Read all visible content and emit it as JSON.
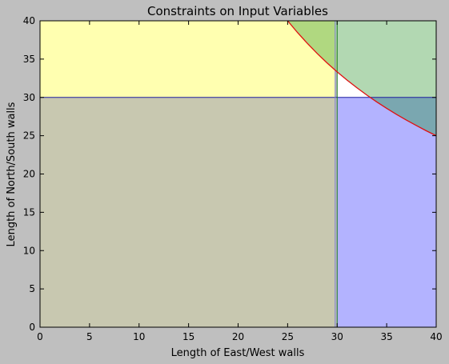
{
  "chart_data": {
    "type": "area",
    "title": "Constraints on Input Variables",
    "xlabel": "Length of East/West walls",
    "ylabel": "Length of North/South walls",
    "xlim": [
      0,
      40
    ],
    "ylim": [
      0,
      40
    ],
    "xticks": [
      0,
      5,
      10,
      15,
      20,
      25,
      30,
      35,
      40
    ],
    "yticks": [
      0,
      5,
      10,
      15,
      20,
      25,
      30,
      35,
      40
    ],
    "grid": false,
    "regions": [
      {
        "fill": "#ffffb0",
        "x": [
          0,
          29.8
        ],
        "y": [
          0,
          40
        ]
      },
      {
        "fill": "#b3b3ff",
        "x": [
          30,
          40
        ],
        "y": [
          0,
          40
        ]
      },
      {
        "fill": "#b2d8b2",
        "x": [
          30,
          40
        ],
        "y": [
          30,
          40
        ]
      },
      {
        "fill": "#c8c8b0",
        "x": [
          0,
          29.8
        ],
        "y": [
          0,
          30
        ]
      }
    ],
    "curve": {
      "color": "#e01010",
      "formula": "y = 1000 / x",
      "x": [
        25,
        26,
        27,
        28,
        29,
        30,
        31,
        32,
        33,
        34,
        35,
        36,
        37,
        38,
        39,
        40
      ],
      "y": [
        40,
        38.46,
        37.04,
        35.71,
        34.48,
        33.33,
        32.26,
        31.25,
        30.3,
        29.41,
        28.57,
        27.78,
        27.03,
        26.32,
        25.64,
        25
      ]
    },
    "lines": [
      {
        "orientation": "horizontal",
        "value": 30,
        "color": "#1a1aa0"
      },
      {
        "orientation": "vertical",
        "value": 30,
        "color": "#1a7a1a"
      },
      {
        "orientation": "vertical",
        "value": 29.8,
        "color": "#8080d0"
      }
    ]
  }
}
